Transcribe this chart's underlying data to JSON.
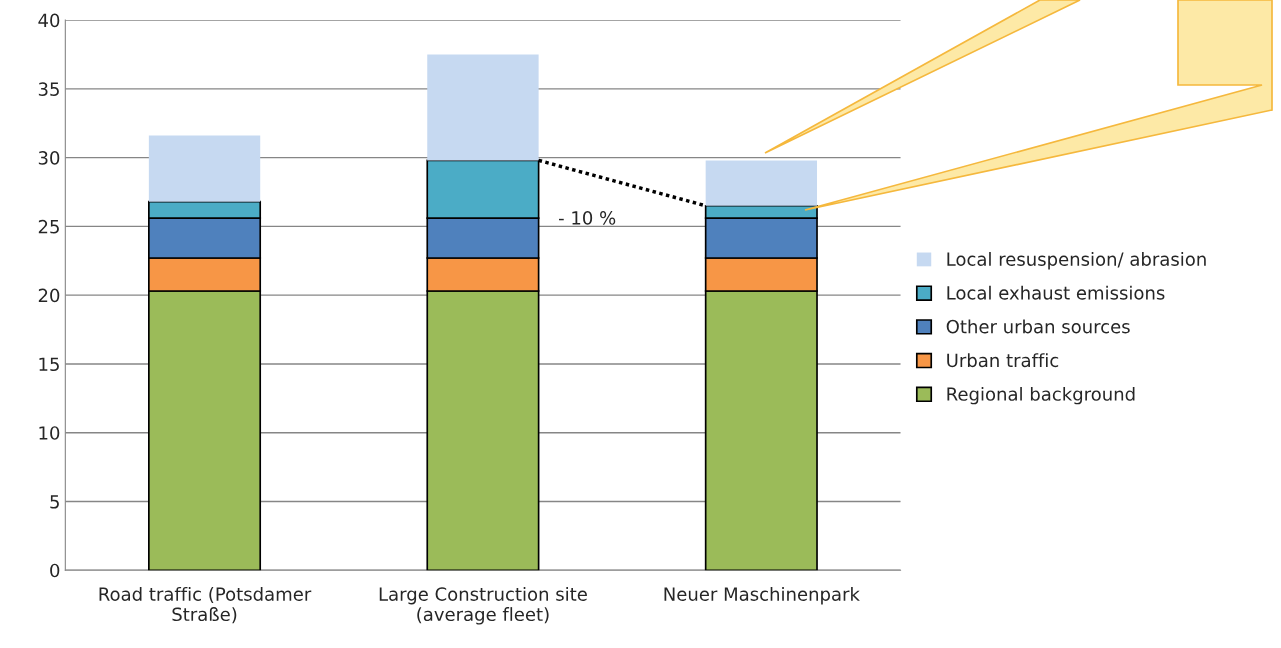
{
  "chart_data": {
    "type": "bar",
    "stacked": true,
    "categories": [
      "Road traffic (Potsdamer\nStraße)",
      "Large Construction site\n(average fleet)",
      "Neuer Maschinenpark"
    ],
    "series": [
      {
        "name": "Regional background",
        "color": "#9bbb59",
        "values": [
          20.3,
          20.3,
          20.3
        ]
      },
      {
        "name": "Urban traffic",
        "color": "#f79646",
        "values": [
          2.4,
          2.4,
          2.4
        ]
      },
      {
        "name": "Other urban sources",
        "color": "#4f81bd",
        "values": [
          2.9,
          2.9,
          2.9
        ]
      },
      {
        "name": "Local exhaust emissions",
        "color": "#4bacc6",
        "values": [
          1.2,
          4.2,
          0.9
        ]
      },
      {
        "name": "Local resuspension/ abrasion",
        "color": "#c6d9f1",
        "values": [
          4.8,
          7.7,
          3.3
        ]
      }
    ],
    "ylim": [
      0,
      40
    ],
    "yticks": [
      0,
      5,
      10,
      15,
      20,
      25,
      30,
      35,
      40
    ],
    "grid": "y",
    "legend": "right",
    "annotations": [
      "- 10 %"
    ]
  }
}
